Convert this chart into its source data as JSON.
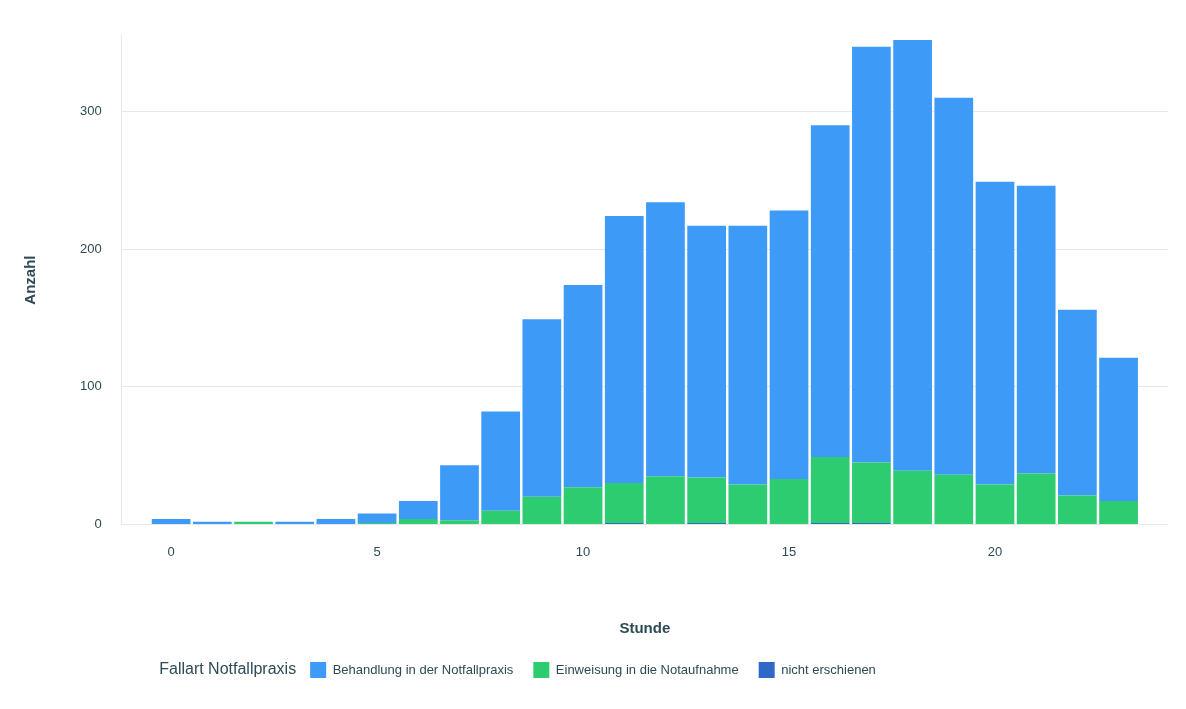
{
  "chart_data": {
    "type": "bar",
    "xlabel": "Stunde",
    "ylabel": "Anzahl",
    "legend_title": "Fallart Notfallpraxis",
    "stacked": true,
    "grid": "y",
    "legend": "bottom left",
    "x": [
      0,
      1,
      2,
      3,
      4,
      5,
      6,
      7,
      8,
      9,
      10,
      11,
      12,
      13,
      14,
      15,
      16,
      17,
      18,
      19,
      20,
      21,
      22,
      23
    ],
    "xlim": [
      -1.2,
      24.2
    ],
    "xticks": [
      0,
      5,
      10,
      15,
      20
    ],
    "ylim": [
      0,
      355
    ],
    "yticks": [
      0,
      100,
      200,
      300
    ],
    "series": [
      {
        "name": "nicht erschienen",
        "color": "#3068c8",
        "values": [
          0,
          0,
          0,
          0,
          0,
          0,
          0,
          0,
          0,
          0,
          0,
          1,
          0,
          1,
          0,
          0,
          1,
          1,
          0,
          0,
          0,
          0,
          0,
          0
        ]
      },
      {
        "name": "Einweisung in die Notaufnahme",
        "color": "#2ecc71",
        "values": [
          0,
          0,
          2,
          0,
          0,
          1,
          4,
          3,
          10,
          20,
          27,
          29,
          35,
          33,
          29,
          33,
          48,
          44,
          39,
          36,
          29,
          37,
          21,
          17
        ]
      },
      {
        "name": "Behandlung in der Notfallpraxis",
        "color": "#3d9bf7",
        "values": [
          4,
          2,
          0,
          2,
          4,
          7,
          13,
          40,
          72,
          129,
          147,
          194,
          199,
          183,
          188,
          195,
          241,
          302,
          313,
          274,
          220,
          209,
          135,
          104
        ]
      }
    ]
  }
}
